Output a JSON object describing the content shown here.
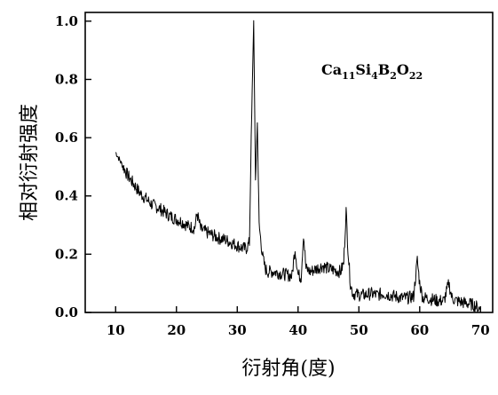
{
  "chart_data": {
    "type": "line",
    "title": "",
    "xlabel": "衍射角(度)",
    "ylabel": "相对衍射强度",
    "xlim": [
      5,
      72
    ],
    "ylim": [
      0,
      1.03
    ],
    "x_ticks": [
      10,
      20,
      30,
      40,
      50,
      60,
      70
    ],
    "x_tick_labels": [
      "10",
      "20",
      "30",
      "40",
      "50",
      "60",
      "70"
    ],
    "y_ticks": [
      0.0,
      0.2,
      0.4,
      0.6,
      0.8,
      1.0
    ],
    "y_tick_labels": [
      "0.0",
      "0.2",
      "0.4",
      "0.6",
      "0.8",
      "1.0"
    ],
    "grid": false,
    "legend": "none",
    "line_color": "#000000",
    "annotation": {
      "base_1": "Ca",
      "sub_1": "11",
      "base_2": "Si",
      "sub_2": "4",
      "base_3": "B",
      "sub_3": "2",
      "base_4": "O",
      "sub_4": "22"
    },
    "series": [
      {
        "x": [
          10,
          11,
          12,
          13,
          14,
          15,
          16,
          17,
          18,
          19,
          20,
          21,
          22,
          23,
          23.4,
          24,
          25,
          26,
          27,
          28,
          29,
          30,
          31,
          31.5,
          32,
          32.3,
          32.7,
          33.0,
          33.3,
          33.6,
          33.9,
          34.2,
          34.6,
          35,
          36,
          37,
          38,
          39,
          39.5,
          40,
          40.5,
          40.9,
          41.3,
          42,
          43,
          44,
          45,
          46,
          47,
          47.5,
          47.9,
          48.2,
          48.6,
          49,
          50,
          51,
          52,
          53,
          54,
          55,
          56,
          57,
          58,
          59,
          59.6,
          60,
          60.5,
          61,
          62,
          63,
          64,
          64.8,
          65.3,
          66,
          67,
          68,
          69,
          70
        ],
        "y": [
          0.55,
          0.51,
          0.47,
          0.44,
          0.41,
          0.39,
          0.37,
          0.36,
          0.345,
          0.33,
          0.32,
          0.31,
          0.295,
          0.29,
          0.34,
          0.285,
          0.275,
          0.265,
          0.255,
          0.25,
          0.24,
          0.23,
          0.22,
          0.22,
          0.24,
          0.6,
          1.0,
          0.45,
          0.65,
          0.3,
          0.24,
          0.19,
          0.15,
          0.14,
          0.14,
          0.135,
          0.13,
          0.125,
          0.22,
          0.13,
          0.12,
          0.27,
          0.15,
          0.14,
          0.15,
          0.16,
          0.15,
          0.145,
          0.14,
          0.17,
          0.35,
          0.22,
          0.1,
          0.065,
          0.06,
          0.06,
          0.065,
          0.06,
          0.065,
          0.06,
          0.055,
          0.05,
          0.05,
          0.055,
          0.18,
          0.1,
          0.05,
          0.05,
          0.045,
          0.04,
          0.04,
          0.1,
          0.05,
          0.04,
          0.035,
          0.03,
          0.025,
          0.01
        ]
      }
    ]
  }
}
